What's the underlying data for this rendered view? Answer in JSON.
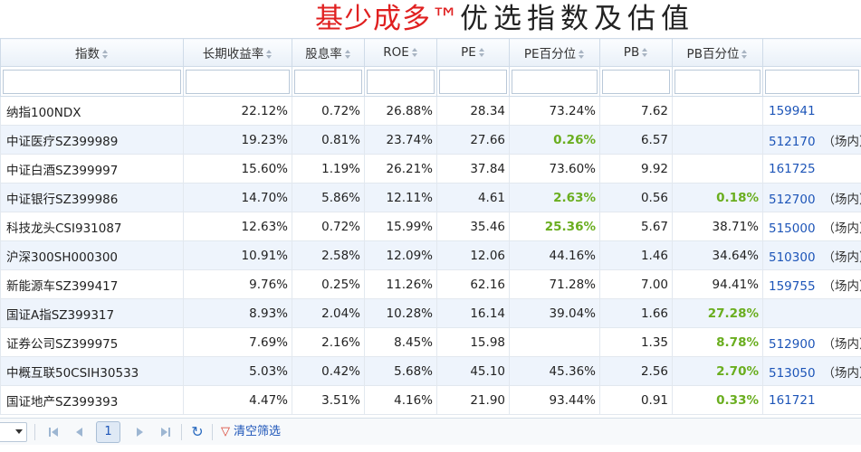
{
  "title": {
    "brand": "基少成多™",
    "rest": "优选指数及估值"
  },
  "columns": [
    "指数",
    "长期收益率",
    "股息率",
    "ROE",
    "PE",
    "PE百分位",
    "PB",
    "PB百分位",
    ""
  ],
  "rows": [
    {
      "name": "纳指100NDX",
      "ret": "22.12%",
      "div": "0.72%",
      "roe": "26.88%",
      "pe": "28.34",
      "pe_pct": "73.24%",
      "pe_hl": false,
      "pb": "7.62",
      "pb_pct": "",
      "pb_hl": false,
      "code": "159941",
      "tag": ""
    },
    {
      "name": "中证医疗SZ399989",
      "ret": "19.23%",
      "div": "0.81%",
      "roe": "23.74%",
      "pe": "27.66",
      "pe_pct": "0.26%",
      "pe_hl": true,
      "pb": "6.57",
      "pb_pct": "",
      "pb_hl": false,
      "code": "512170",
      "tag": "（场内）"
    },
    {
      "name": "中证白酒SZ399997",
      "ret": "15.60%",
      "div": "1.19%",
      "roe": "26.21%",
      "pe": "37.84",
      "pe_pct": "73.60%",
      "pe_hl": false,
      "pb": "9.92",
      "pb_pct": "",
      "pb_hl": false,
      "code": "161725",
      "tag": ""
    },
    {
      "name": "中证银行SZ399986",
      "ret": "14.70%",
      "div": "5.86%",
      "roe": "12.11%",
      "pe": "4.61",
      "pe_pct": "2.63%",
      "pe_hl": true,
      "pb": "0.56",
      "pb_pct": "0.18%",
      "pb_hl": true,
      "code": "512700",
      "tag": "（场内）"
    },
    {
      "name": "科技龙头CSI931087",
      "ret": "12.63%",
      "div": "0.72%",
      "roe": "15.99%",
      "pe": "35.46",
      "pe_pct": "25.36%",
      "pe_hl": true,
      "pb": "5.67",
      "pb_pct": "38.71%",
      "pb_hl": false,
      "code": "515000",
      "tag": "（场内）"
    },
    {
      "name": "沪深300SH000300",
      "ret": "10.91%",
      "div": "2.58%",
      "roe": "12.09%",
      "pe": "12.06",
      "pe_pct": "44.16%",
      "pe_hl": false,
      "pb": "1.46",
      "pb_pct": "34.64%",
      "pb_hl": false,
      "code": "510300",
      "tag": "（场内）"
    },
    {
      "name": "新能源车SZ399417",
      "ret": "9.76%",
      "div": "0.25%",
      "roe": "11.26%",
      "pe": "62.16",
      "pe_pct": "71.28%",
      "pe_hl": false,
      "pb": "7.00",
      "pb_pct": "94.41%",
      "pb_hl": false,
      "code": "159755",
      "tag": "（场内）"
    },
    {
      "name": "国证A指SZ399317",
      "ret": "8.93%",
      "div": "2.04%",
      "roe": "10.28%",
      "pe": "16.14",
      "pe_pct": "39.04%",
      "pe_hl": false,
      "pb": "1.66",
      "pb_pct": "27.28%",
      "pb_hl": true,
      "code": "",
      "tag": ""
    },
    {
      "name": "证券公司SZ399975",
      "ret": "7.69%",
      "div": "2.16%",
      "roe": "8.45%",
      "pe": "15.98",
      "pe_pct": "",
      "pe_hl": false,
      "pb": "1.35",
      "pb_pct": "8.78%",
      "pb_hl": true,
      "code": "512900",
      "tag": "（场内）"
    },
    {
      "name": "中概互联50CSIH30533",
      "ret": "5.03%",
      "div": "0.42%",
      "roe": "5.68%",
      "pe": "45.10",
      "pe_pct": "45.36%",
      "pe_hl": false,
      "pb": "2.56",
      "pb_pct": "2.70%",
      "pb_hl": true,
      "code": "513050",
      "tag": "（场内）"
    },
    {
      "name": "国证地产SZ399393",
      "ret": "4.47%",
      "div": "3.51%",
      "roe": "4.16%",
      "pe": "21.90",
      "pe_pct": "93.44%",
      "pe_hl": false,
      "pb": "0.91",
      "pb_pct": "0.33%",
      "pb_hl": true,
      "code": "161721",
      "tag": ""
    }
  ],
  "pager": {
    "page_size": "5",
    "page": "1",
    "clear_label": "清空筛选",
    "icons": [
      "first-page-icon",
      "prev-page-icon",
      "next-page-icon",
      "last-page-icon",
      "refresh-icon",
      "filter-clear-icon"
    ]
  },
  "colors": {
    "brand": "#e02020",
    "highlight": "#6aae1f",
    "link": "#1d55b8",
    "row_alt": "#eef4fc"
  }
}
